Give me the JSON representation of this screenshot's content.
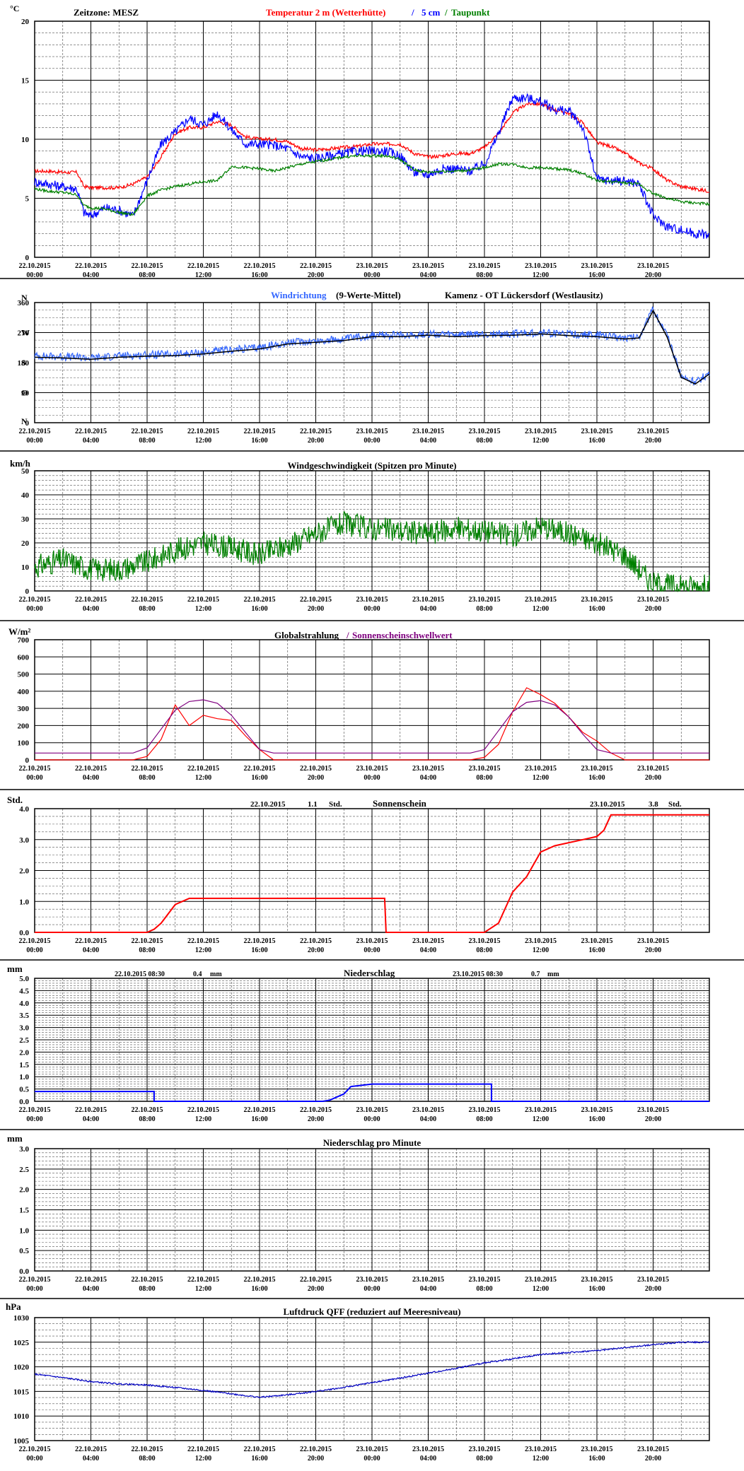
{
  "x_ticks": {
    "dates": [
      "22.10.2015",
      "22.10.2015",
      "22.10.2015",
      "22.10.2015",
      "22.10.2015",
      "22.10.2015",
      "23.10.2015",
      "23.10.2015",
      "23.10.2015",
      "23.10.2015",
      "23.10.2015",
      "23.10.2015"
    ],
    "times": [
      "00:00",
      "04:00",
      "08:00",
      "12:00",
      "16:00",
      "20:00",
      "00:00",
      "04:00",
      "08:00",
      "12:00",
      "16:00",
      "20:00"
    ]
  },
  "colors": {
    "temp2m": "#ff0000",
    "temp5cm": "#0000ff",
    "dew": "#008000",
    "winddir_avg": "#3366ff",
    "winddir_raw": "#000000",
    "wind": "#008000",
    "radiation": "#ff0000",
    "threshold": "#800080",
    "sunshine": "#ff0000",
    "precip": "#0000ff",
    "pressure": "#0000c0"
  },
  "chart_data": [
    {
      "type": "line",
      "id": "temperature",
      "ylabel": "°C",
      "ylim": [
        0,
        20
      ],
      "yticks": [
        0,
        5,
        10,
        15,
        20
      ],
      "header": {
        "left": "Zeitzone: MESZ",
        "t2m": "Temperatur 2 m (Wetterhütte)",
        "sep": "/",
        "t5": "5 cm",
        "sep2": "/",
        "dew": "Taupunkt"
      },
      "x_hours": [
        0,
        1,
        2,
        3,
        3.5,
        4,
        5,
        6,
        7,
        8,
        9,
        10,
        11,
        12,
        13,
        14,
        15,
        16,
        17,
        18,
        19,
        20,
        21,
        22,
        23,
        24,
        25,
        26,
        27,
        28,
        29,
        30,
        31,
        32,
        33,
        34,
        35,
        36,
        37,
        38,
        39,
        40,
        41,
        42,
        43,
        44,
        45,
        46,
        47,
        48
      ],
      "series": [
        {
          "name": "Temperatur 2 m (Wetterhütte)",
          "values": [
            7.3,
            7.3,
            7.2,
            7.2,
            6,
            5.9,
            5.9,
            5.9,
            6.2,
            6.8,
            8.5,
            10.5,
            11,
            11,
            11.5,
            11.2,
            10.2,
            10,
            10,
            9.8,
            9.2,
            9.1,
            9.2,
            9.3,
            9.4,
            9.6,
            9.6,
            9.6,
            8.8,
            8.5,
            8.6,
            8.8,
            8.8,
            9.3,
            10.5,
            12.2,
            13,
            13,
            12.5,
            12.2,
            11.4,
            9.7,
            9.4,
            8.8,
            8.0,
            7.5,
            6.5,
            6.0,
            5.8,
            5.6
          ]
        },
        {
          "name": "5 cm",
          "values": [
            6.4,
            6.2,
            6,
            5.8,
            3.8,
            3.5,
            4.2,
            4.0,
            3.5,
            6.5,
            9.6,
            10.6,
            11.8,
            11.2,
            12.2,
            10.8,
            9.6,
            9.6,
            9.5,
            9.2,
            8.5,
            8.4,
            8.6,
            8.8,
            9.0,
            9.0,
            9.0,
            8.6,
            7.2,
            7.0,
            7.5,
            7.5,
            7.3,
            7.9,
            10.5,
            13.5,
            13.5,
            13.2,
            12.5,
            12.4,
            11.0,
            6.6,
            6.5,
            6.5,
            6.2,
            3.5,
            2.6,
            2.3,
            2.0,
            1.9
          ]
        },
        {
          "name": "Taupunkt",
          "values": [
            5.8,
            5.6,
            5.5,
            5.3,
            4.4,
            4.2,
            4.1,
            3.8,
            3.6,
            5.2,
            5.7,
            6.0,
            6.2,
            6.4,
            6.5,
            7.7,
            7.6,
            7.5,
            7.3,
            7.6,
            7.9,
            8.1,
            8.3,
            8.5,
            8.6,
            8.6,
            8.6,
            8.3,
            7.4,
            7.2,
            7.3,
            7.3,
            7.4,
            7.6,
            7.9,
            7.9,
            7.6,
            7.6,
            7.5,
            7.4,
            7.1,
            6.5,
            6.4,
            6.3,
            6.2,
            5.4,
            5.0,
            4.7,
            4.6,
            4.5
          ]
        }
      ]
    },
    {
      "type": "line",
      "id": "winddirection",
      "ylim": [
        0,
        360
      ],
      "yticks": [
        0,
        90,
        180,
        270,
        360
      ],
      "compass": [
        {
          "label": "N",
          "deg": 360
        },
        {
          "label": "W",
          "deg": 270
        },
        {
          "label": "S",
          "deg": 180
        },
        {
          "label": "O",
          "deg": 90
        },
        {
          "label": "N",
          "deg": 0
        }
      ],
      "header": {
        "avg": "Windrichtung",
        "avg_suffix": "(9-Werte-Mittel)",
        "station": "Kamenz - OT Lückersdorf (Westlausitz)"
      },
      "x_hours": [
        0,
        2,
        4,
        6,
        8,
        10,
        12,
        14,
        16,
        18,
        20,
        22,
        24,
        26,
        28,
        30,
        32,
        34,
        36,
        38,
        40,
        42,
        43,
        44,
        45,
        46,
        47,
        48
      ],
      "series": [
        {
          "name": "Windrichtung",
          "values": [
            200,
            198,
            194,
            200,
            203,
            205,
            210,
            218,
            225,
            240,
            245,
            250,
            262,
            262,
            266,
            262,
            265,
            266,
            270,
            265,
            262,
            255,
            258,
            340,
            260,
            140,
            120,
            150
          ]
        }
      ]
    },
    {
      "type": "line",
      "id": "windspeed",
      "ylabel": "km/h",
      "title": "Windgeschwindigkeit (Spitzen pro Minute)",
      "ylim": [
        0,
        50
      ],
      "yticks": [
        0,
        10,
        20,
        30,
        40,
        50
      ],
      "x_hours": [
        0,
        2,
        4,
        6,
        8,
        10,
        12,
        14,
        16,
        18,
        20,
        22,
        24,
        26,
        28,
        30,
        32,
        34,
        36,
        38,
        40,
        42,
        44,
        46,
        48
      ],
      "series": [
        {
          "name": "Windgeschwindigkeit",
          "values": [
            10,
            13,
            9,
            9,
            12,
            17,
            20,
            18,
            15,
            19,
            24,
            28,
            26,
            25,
            24,
            26,
            25,
            23,
            27,
            24,
            20,
            15,
            3,
            2,
            2
          ]
        }
      ]
    },
    {
      "type": "line",
      "id": "radiation",
      "ylabel": "W/m²",
      "title": "Globalstrahlung",
      "title_sep": "/",
      "title2": "Sonnenscheinschwellwert",
      "ylim": [
        0,
        700
      ],
      "yticks": [
        0,
        100,
        200,
        300,
        400,
        500,
        600,
        700
      ],
      "x_hours": [
        0,
        7,
        8,
        9,
        10,
        11,
        12,
        13,
        14,
        15,
        16,
        17,
        31,
        32,
        33,
        34,
        35,
        36,
        37,
        38,
        39,
        40,
        41,
        42,
        48
      ],
      "series": [
        {
          "name": "Globalstrahlung",
          "values": [
            0,
            0,
            20,
            120,
            320,
            200,
            260,
            240,
            230,
            140,
            60,
            0,
            0,
            15,
            90,
            280,
            420,
            380,
            330,
            250,
            160,
            110,
            40,
            0,
            0
          ]
        },
        {
          "name": "Sonnenscheinschwellwert",
          "values": [
            40,
            40,
            70,
            180,
            290,
            340,
            350,
            330,
            260,
            160,
            60,
            40,
            40,
            60,
            170,
            280,
            335,
            345,
            320,
            250,
            150,
            60,
            40,
            40,
            40
          ]
        }
      ]
    },
    {
      "type": "line",
      "id": "sunshine",
      "ylabel": "Std.",
      "title": "Sonnenschein",
      "ylim": [
        0,
        4
      ],
      "yticks": [
        0,
        1,
        2,
        3,
        4
      ],
      "summary": [
        {
          "date": "22.10.2015",
          "value": "1.1",
          "unit": "Std."
        },
        {
          "date": "23.10.2015",
          "value": "3.8",
          "unit": "Std."
        }
      ],
      "x_hours": [
        0,
        8,
        8.5,
        9,
        10,
        11,
        24.9,
        25,
        32,
        33,
        34,
        35,
        36,
        37,
        38,
        39,
        40,
        40.5,
        41,
        48
      ],
      "series": [
        {
          "name": "Sonnenschein",
          "values": [
            0,
            0,
            0.1,
            0.3,
            0.9,
            1.1,
            1.1,
            0,
            0,
            0.3,
            1.3,
            1.8,
            2.6,
            2.8,
            2.9,
            3.0,
            3.1,
            3.3,
            3.8,
            3.8
          ]
        }
      ]
    },
    {
      "type": "line",
      "id": "precipitation",
      "ylabel": "mm",
      "title": "Niederschlag",
      "ylim": [
        0,
        5
      ],
      "yticks": [
        0,
        0.5,
        1,
        1.5,
        2,
        2.5,
        3,
        3.5,
        4,
        4.5,
        5
      ],
      "summary": [
        {
          "date": "22.10.2015 08:30",
          "value": "0.4",
          "unit": "mm"
        },
        {
          "date": "23.10.2015 08:30",
          "value": "0.7",
          "unit": "mm"
        }
      ],
      "x_hours": [
        0,
        8.5,
        8.5,
        20.5,
        21,
        22,
        22.5,
        24,
        32.5,
        32.5,
        48
      ],
      "series": [
        {
          "name": "Niederschlag",
          "values": [
            0.4,
            0.4,
            0,
            0,
            0.05,
            0.3,
            0.6,
            0.7,
            0.7,
            0,
            0
          ]
        }
      ]
    },
    {
      "type": "line",
      "id": "precip_minute",
      "ylabel": "mm",
      "title": "Niederschlag pro Minute",
      "ylim": [
        0,
        3
      ],
      "yticks": [
        0,
        0.5,
        1,
        1.5,
        2,
        2.5,
        3
      ],
      "x_hours": [],
      "series": []
    },
    {
      "type": "line",
      "id": "pressure",
      "ylabel": "hPa",
      "title": "Luftdruck QFF (reduziert auf Meeresniveau)",
      "ylim": [
        1005,
        1030
      ],
      "yticks": [
        1005,
        1010,
        1015,
        1020,
        1025,
        1030
      ],
      "x_hours": [
        0,
        2,
        4,
        6,
        8,
        10,
        12,
        14,
        16,
        18,
        20,
        22,
        24,
        26,
        28,
        30,
        32,
        34,
        36,
        38,
        40,
        42,
        44,
        46,
        48
      ],
      "series": [
        {
          "name": "Luftdruck QFF",
          "values": [
            1018.5,
            1017.8,
            1017,
            1016.5,
            1016.3,
            1015.8,
            1015.2,
            1014.5,
            1013.8,
            1014.3,
            1015,
            1015.8,
            1016.8,
            1017.7,
            1018.7,
            1019.7,
            1020.8,
            1021.6,
            1022.5,
            1022.9,
            1023.3,
            1023.9,
            1024.5,
            1025,
            1025
          ]
        }
      ]
    }
  ]
}
